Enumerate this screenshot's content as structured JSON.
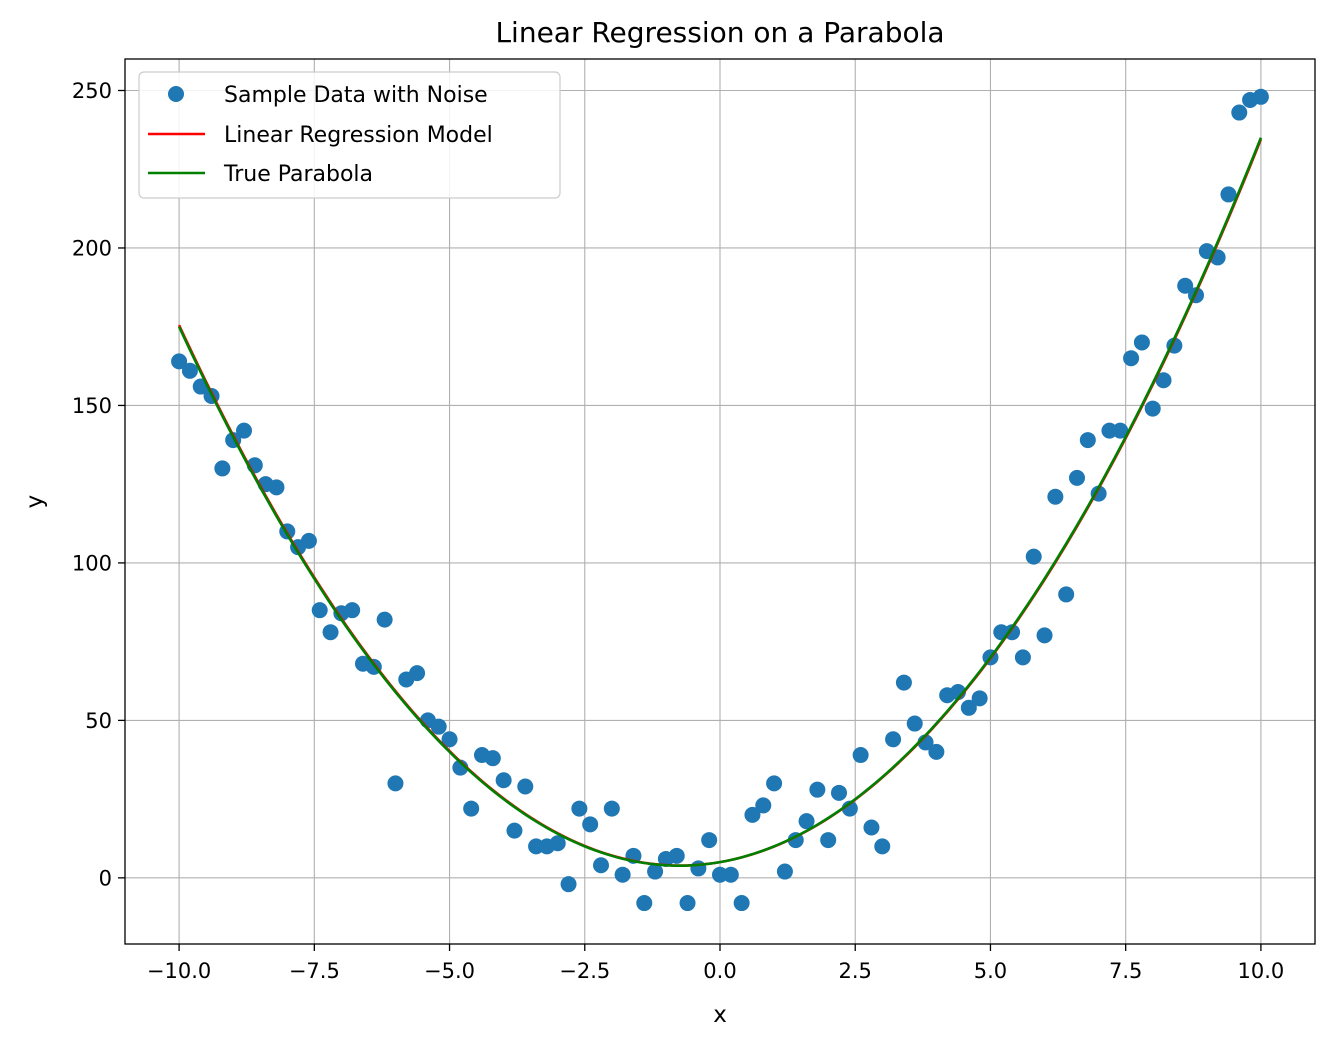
{
  "chart_data": {
    "type": "scatter",
    "title": "Linear Regression on a Parabola",
    "xlabel": "x",
    "ylabel": "y",
    "xlim": [
      -11,
      11
    ],
    "ylim": [
      -21,
      260
    ],
    "grid": true,
    "legend_position": "top-left",
    "x_ticks": [
      -10.0,
      -7.5,
      -5.0,
      -2.5,
      0.0,
      2.5,
      5.0,
      7.5,
      10.0
    ],
    "x_tick_labels": [
      "−10.0",
      "−7.5",
      "−5.0",
      "−2.5",
      "0.0",
      "2.5",
      "5.0",
      "7.5",
      "10.0"
    ],
    "y_ticks": [
      0,
      50,
      100,
      150,
      200,
      250
    ],
    "y_tick_labels": [
      "0",
      "50",
      "100",
      "150",
      "200",
      "250"
    ],
    "series": [
      {
        "name": "Sample Data with Noise",
        "kind": "scatter",
        "color": "#1f77b4",
        "x": [
          -10.0,
          -9.8,
          -9.6,
          -9.4,
          -9.2,
          -9.0,
          -8.8,
          -8.6,
          -8.4,
          -8.2,
          -8.0,
          -7.8,
          -7.6,
          -7.4,
          -7.2,
          -7.0,
          -6.8,
          -6.6,
          -6.4,
          -6.2,
          -6.0,
          -5.8,
          -5.6,
          -5.4,
          -5.2,
          -5.0,
          -4.8,
          -4.6,
          -4.4,
          -4.2,
          -4.0,
          -3.8,
          -3.6,
          -3.4,
          -3.2,
          -3.0,
          -2.8,
          -2.6,
          -2.4,
          -2.2,
          -2.0,
          -1.8,
          -1.6,
          -1.4,
          -1.2,
          -1.0,
          -0.8,
          -0.6,
          -0.4,
          -0.2,
          0.0,
          0.2,
          0.4,
          0.6,
          0.8,
          1.0,
          1.2,
          1.4,
          1.6,
          1.8,
          2.0,
          2.2,
          2.4,
          2.6,
          2.8,
          3.0,
          3.2,
          3.4,
          3.6,
          3.8,
          4.0,
          4.2,
          4.4,
          4.6,
          4.8,
          5.0,
          5.2,
          5.4,
          5.6,
          5.8,
          6.0,
          6.2,
          6.4,
          6.6,
          6.8,
          7.0,
          7.2,
          7.4,
          7.6,
          7.8,
          8.0,
          8.2,
          8.4,
          8.6,
          8.8,
          9.0,
          9.2,
          9.4,
          9.6,
          9.8,
          10.0
        ],
        "y": [
          164,
          161,
          156,
          153,
          130,
          139,
          142,
          131,
          125,
          124,
          110,
          105,
          107,
          85,
          78,
          84,
          85,
          68,
          67,
          82,
          30,
          63,
          65,
          50,
          48,
          44,
          35,
          22,
          39,
          38,
          31,
          15,
          29,
          10,
          10,
          11,
          -2,
          22,
          17,
          4,
          22,
          1,
          7,
          -8,
          2,
          6,
          7,
          -8,
          3,
          12,
          1,
          1,
          -8,
          20,
          23,
          30,
          2,
          12,
          18,
          28,
          12,
          27,
          22,
          39,
          16,
          10,
          44,
          62,
          49,
          43,
          40,
          58,
          59,
          54,
          57,
          70,
          78,
          78,
          70,
          102,
          77,
          121,
          90,
          127,
          139,
          122,
          142,
          142,
          165,
          170,
          149,
          158,
          169,
          188,
          185,
          199,
          197,
          217,
          243,
          247,
          248
        ]
      },
      {
        "name": "Linear Regression Model",
        "kind": "line",
        "color": "#ff0000",
        "equation": "y = 2.0x^2 + 2.95x + 5.0",
        "x_range": [
          -10,
          10
        ]
      },
      {
        "name": "True Parabola",
        "kind": "line",
        "color": "#008000",
        "equation": "y = 2x^2 + 3x + 5",
        "x_range": [
          -10,
          10
        ]
      }
    ]
  }
}
